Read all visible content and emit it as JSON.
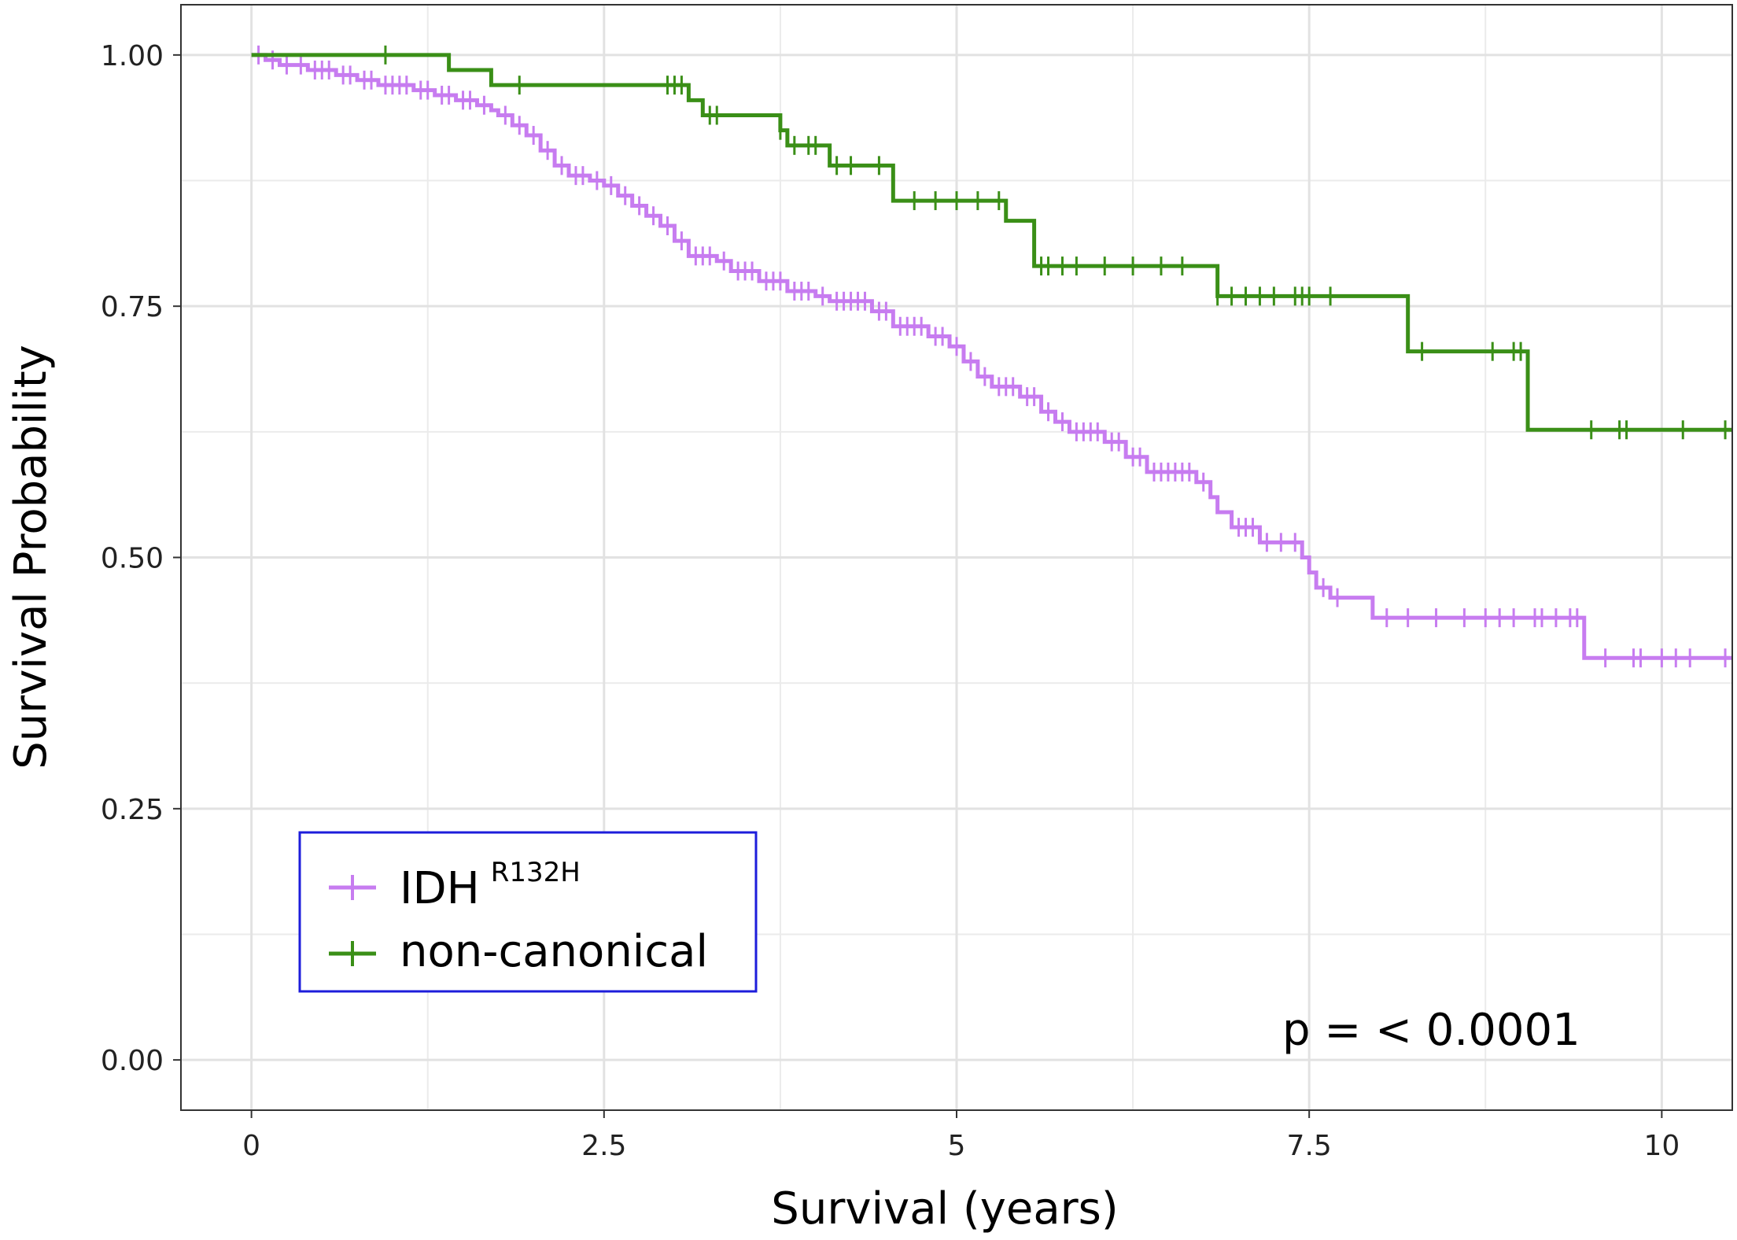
{
  "chart_data": {
    "type": "line",
    "subtype": "kaplan-meier",
    "title": "",
    "xlabel": "Survival (years)",
    "ylabel": "Survival Probability",
    "xlim": [
      -0.5,
      10.5
    ],
    "ylim": [
      -0.05,
      1.05
    ],
    "x_ticks": [
      0,
      2.5,
      5,
      7.5,
      10
    ],
    "x_tick_labels": [
      "0",
      "2.5",
      "5",
      "7.5",
      "10"
    ],
    "y_ticks": [
      0,
      0.25,
      0.5,
      0.75,
      1
    ],
    "y_tick_labels": [
      "0.00",
      "0.25",
      "0.50",
      "0.75",
      "1.00"
    ],
    "grid": true,
    "legend_position": "bottom-left",
    "annotation": "p = < 0.0001",
    "series": [
      {
        "name": "IDH",
        "name_superscript": "R132H",
        "color": "#c77cf0",
        "steps": [
          [
            0,
            1.0
          ],
          [
            0.1,
            0.995
          ],
          [
            0.2,
            0.99
          ],
          [
            0.4,
            0.985
          ],
          [
            0.6,
            0.98
          ],
          [
            0.75,
            0.975
          ],
          [
            0.9,
            0.97
          ],
          [
            1.15,
            0.965
          ],
          [
            1.3,
            0.96
          ],
          [
            1.45,
            0.955
          ],
          [
            1.6,
            0.95
          ],
          [
            1.7,
            0.945
          ],
          [
            1.75,
            0.94
          ],
          [
            1.85,
            0.93
          ],
          [
            1.95,
            0.92
          ],
          [
            2.05,
            0.905
          ],
          [
            2.15,
            0.89
          ],
          [
            2.25,
            0.88
          ],
          [
            2.4,
            0.875
          ],
          [
            2.5,
            0.87
          ],
          [
            2.6,
            0.86
          ],
          [
            2.7,
            0.85
          ],
          [
            2.8,
            0.84
          ],
          [
            2.9,
            0.83
          ],
          [
            3.0,
            0.815
          ],
          [
            3.1,
            0.8
          ],
          [
            3.3,
            0.795
          ],
          [
            3.4,
            0.785
          ],
          [
            3.6,
            0.775
          ],
          [
            3.8,
            0.765
          ],
          [
            4.0,
            0.76
          ],
          [
            4.1,
            0.755
          ],
          [
            4.4,
            0.745
          ],
          [
            4.55,
            0.73
          ],
          [
            4.8,
            0.72
          ],
          [
            4.95,
            0.71
          ],
          [
            5.05,
            0.695
          ],
          [
            5.15,
            0.68
          ],
          [
            5.25,
            0.67
          ],
          [
            5.45,
            0.66
          ],
          [
            5.6,
            0.645
          ],
          [
            5.7,
            0.635
          ],
          [
            5.8,
            0.625
          ],
          [
            6.05,
            0.615
          ],
          [
            6.2,
            0.6
          ],
          [
            6.35,
            0.585
          ],
          [
            6.7,
            0.575
          ],
          [
            6.8,
            0.56
          ],
          [
            6.85,
            0.545
          ],
          [
            6.95,
            0.53
          ],
          [
            7.15,
            0.515
          ],
          [
            7.45,
            0.5
          ],
          [
            7.5,
            0.485
          ],
          [
            7.55,
            0.47
          ],
          [
            7.65,
            0.46
          ],
          [
            7.95,
            0.44
          ],
          [
            9.45,
            0.4
          ]
        ],
        "end_x": 10.5,
        "censors": [
          0.05,
          0.15,
          0.25,
          0.35,
          0.45,
          0.5,
          0.55,
          0.65,
          0.7,
          0.8,
          0.85,
          0.95,
          1.0,
          1.05,
          1.1,
          1.2,
          1.25,
          1.35,
          1.4,
          1.5,
          1.55,
          1.65,
          1.8,
          1.9,
          2.0,
          2.1,
          2.2,
          2.3,
          2.35,
          2.45,
          2.55,
          2.65,
          2.75,
          2.85,
          2.95,
          3.05,
          3.15,
          3.2,
          3.25,
          3.35,
          3.45,
          3.5,
          3.55,
          3.65,
          3.7,
          3.75,
          3.85,
          3.9,
          3.95,
          4.05,
          4.15,
          4.2,
          4.25,
          4.3,
          4.35,
          4.45,
          4.5,
          4.6,
          4.65,
          4.7,
          4.75,
          4.85,
          4.9,
          5.0,
          5.1,
          5.2,
          5.3,
          5.35,
          5.4,
          5.5,
          5.55,
          5.65,
          5.75,
          5.85,
          5.9,
          5.95,
          6.0,
          6.1,
          6.15,
          6.25,
          6.3,
          6.4,
          6.45,
          6.5,
          6.55,
          6.6,
          6.65,
          6.75,
          7.0,
          7.05,
          7.1,
          7.2,
          7.3,
          7.4,
          7.6,
          7.7,
          8.05,
          8.2,
          8.4,
          8.6,
          8.75,
          8.85,
          8.95,
          9.1,
          9.15,
          9.25,
          9.35,
          9.4,
          9.6,
          9.8,
          9.85,
          10.0,
          10.1,
          10.2,
          10.45
        ]
      },
      {
        "name": "non-canonical",
        "color": "#3a8f17",
        "steps": [
          [
            0,
            1.0
          ],
          [
            1.4,
            0.985
          ],
          [
            1.7,
            0.97
          ],
          [
            3.1,
            0.955
          ],
          [
            3.2,
            0.94
          ],
          [
            3.75,
            0.925
          ],
          [
            3.8,
            0.91
          ],
          [
            4.1,
            0.89
          ],
          [
            4.55,
            0.855
          ],
          [
            5.35,
            0.835
          ],
          [
            5.55,
            0.79
          ],
          [
            6.85,
            0.76
          ],
          [
            8.2,
            0.705
          ],
          [
            9.05,
            0.627
          ]
        ],
        "end_x": 10.5,
        "censors": [
          0.95,
          1.9,
          2.95,
          3.0,
          3.05,
          3.25,
          3.3,
          3.75,
          3.85,
          3.95,
          4.0,
          4.15,
          4.25,
          4.45,
          4.7,
          4.85,
          5.0,
          5.15,
          5.3,
          5.6,
          5.65,
          5.75,
          5.85,
          6.05,
          6.25,
          6.45,
          6.6,
          6.85,
          6.95,
          7.05,
          7.15,
          7.25,
          7.4,
          7.45,
          7.5,
          7.65,
          8.3,
          8.8,
          8.95,
          9.0,
          9.5,
          9.7,
          9.75,
          10.15,
          10.45
        ]
      }
    ]
  }
}
